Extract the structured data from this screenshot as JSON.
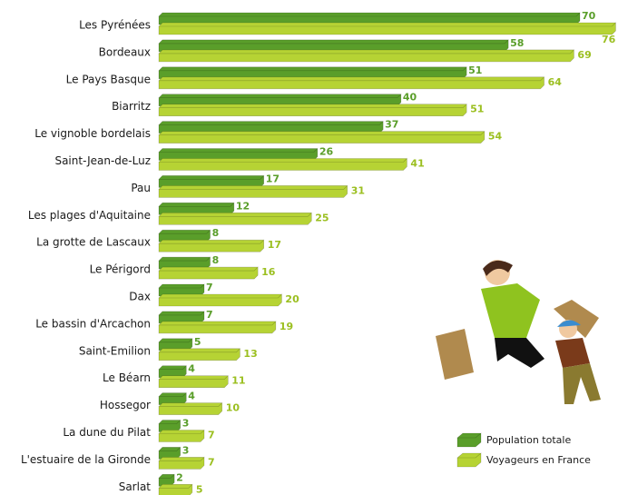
{
  "chart_data": {
    "type": "bar",
    "orientation": "horizontal",
    "categories": [
      "Les Pyrénées",
      "Bordeaux",
      "Le Pays Basque",
      "Biarritz",
      "Le vignoble bordelais",
      "Saint-Jean-de-Luz",
      "Pau",
      "Les plages d'Aquitaine",
      "La grotte de Lascaux",
      "Le Périgord",
      "Dax",
      "Le bassin d'Arcachon",
      "Saint-Emilion",
      "Le Béarn",
      "Hossegor",
      "La dune du Pilat",
      "L'estuaire de la Gironde",
      "Sarlat"
    ],
    "series": [
      {
        "name": "Population totale",
        "color": "#5a9e2a",
        "values": [
          70,
          58,
          51,
          40,
          37,
          26,
          17,
          12,
          8,
          8,
          7,
          7,
          5,
          4,
          4,
          3,
          3,
          2
        ]
      },
      {
        "name": "Voyageurs en France",
        "color": "#b6d334",
        "values": [
          76,
          69,
          64,
          51,
          54,
          41,
          31,
          25,
          17,
          16,
          20,
          19,
          13,
          11,
          10,
          7,
          7,
          5
        ]
      }
    ],
    "xlim": [
      0,
      77
    ],
    "legend": "lower-right"
  }
}
